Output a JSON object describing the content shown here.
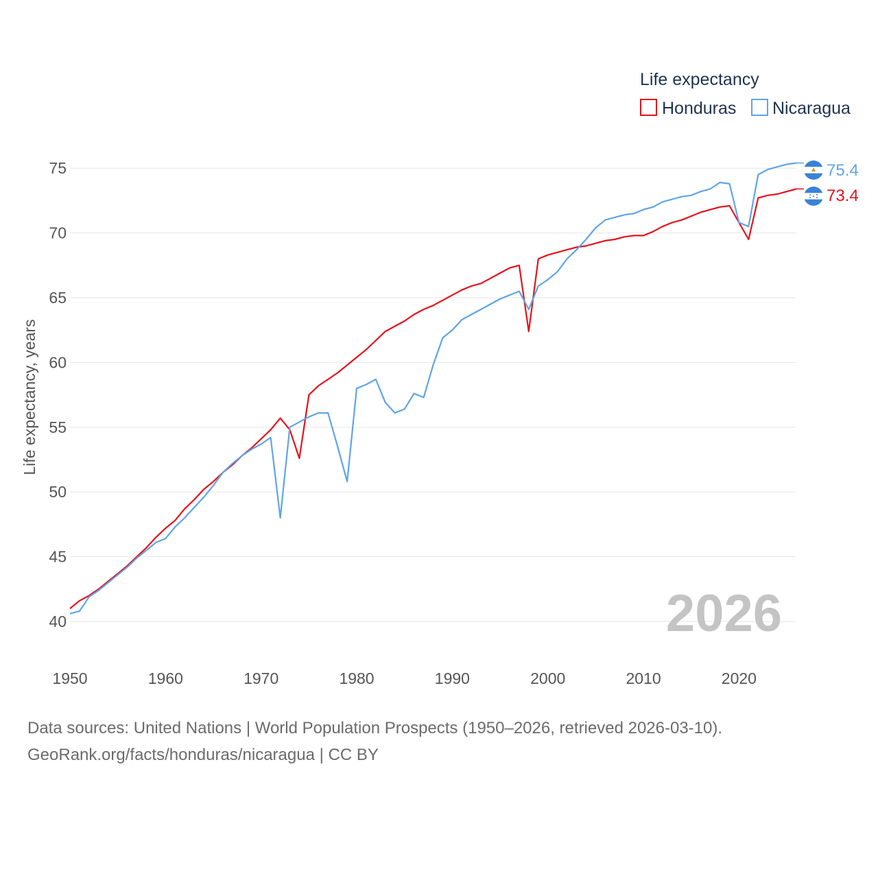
{
  "chart_data": {
    "type": "line",
    "legend_title": "Life expectancy",
    "ylabel": "Life expectancy, years",
    "xlabel": "",
    "xlim": [
      1950,
      2026
    ],
    "ylim": [
      38.2,
      77.5
    ],
    "x_ticks": [
      1950,
      1960,
      1970,
      1980,
      1990,
      2000,
      2010,
      2020
    ],
    "y_ticks": [
      40,
      45,
      50,
      55,
      60,
      65,
      70,
      75
    ],
    "year_watermark": "2026",
    "x": [
      1950,
      1951,
      1952,
      1953,
      1954,
      1955,
      1956,
      1957,
      1958,
      1959,
      1960,
      1961,
      1962,
      1963,
      1964,
      1965,
      1966,
      1967,
      1968,
      1969,
      1970,
      1971,
      1972,
      1973,
      1974,
      1975,
      1976,
      1977,
      1978,
      1979,
      1980,
      1981,
      1982,
      1983,
      1984,
      1985,
      1986,
      1987,
      1988,
      1989,
      1990,
      1991,
      1992,
      1993,
      1994,
      1995,
      1996,
      1997,
      1998,
      1999,
      2000,
      2001,
      2002,
      2003,
      2004,
      2005,
      2006,
      2007,
      2008,
      2009,
      2010,
      2011,
      2012,
      2013,
      2014,
      2015,
      2016,
      2017,
      2018,
      2019,
      2020,
      2021,
      2022,
      2023,
      2024,
      2025,
      2026
    ],
    "series": [
      {
        "name": "Honduras",
        "color": "#e8101a",
        "end_label": "73.4",
        "values": [
          41.0,
          41.6,
          42.0,
          42.5,
          43.1,
          43.7,
          44.3,
          45.0,
          45.7,
          46.5,
          47.2,
          47.8,
          48.7,
          49.4,
          50.2,
          50.8,
          51.5,
          52.1,
          52.8,
          53.4,
          54.1,
          54.8,
          55.7,
          54.8,
          52.6,
          57.5,
          58.2,
          58.7,
          59.2,
          59.8,
          60.4,
          61.0,
          61.7,
          62.4,
          62.8,
          63.2,
          63.7,
          64.1,
          64.4,
          64.8,
          65.2,
          65.6,
          65.9,
          66.1,
          66.5,
          66.9,
          67.3,
          67.5,
          62.4,
          68.0,
          68.3,
          68.5,
          68.7,
          68.9,
          69.0,
          69.2,
          69.4,
          69.5,
          69.7,
          69.8,
          69.8,
          70.1,
          70.5,
          70.8,
          71.0,
          71.3,
          71.6,
          71.8,
          72.0,
          72.1,
          70.8,
          69.5,
          72.7,
          72.9,
          73.0,
          73.2,
          73.4
        ]
      },
      {
        "name": "Nicaragua",
        "color": "#5ea4e8",
        "end_label": "75.4",
        "values": [
          40.6,
          40.8,
          41.9,
          42.4,
          43.0,
          43.6,
          44.2,
          44.9,
          45.5,
          46.1,
          46.4,
          47.3,
          48.0,
          48.8,
          49.6,
          50.5,
          51.5,
          52.2,
          52.8,
          53.3,
          53.7,
          54.2,
          48.0,
          55.0,
          55.4,
          55.8,
          56.1,
          56.1,
          53.5,
          50.8,
          58.0,
          58.3,
          58.7,
          56.9,
          56.1,
          56.4,
          57.6,
          57.3,
          59.8,
          61.9,
          62.5,
          63.3,
          63.7,
          64.1,
          64.5,
          64.9,
          65.2,
          65.5,
          64.1,
          65.9,
          66.4,
          67.0,
          68.0,
          68.7,
          69.5,
          70.4,
          71.0,
          71.2,
          71.4,
          71.5,
          71.8,
          72.0,
          72.4,
          72.6,
          72.8,
          72.9,
          73.2,
          73.4,
          73.9,
          73.8,
          70.8,
          70.5,
          74.5,
          74.9,
          75.1,
          75.3,
          75.4
        ]
      }
    ]
  },
  "footer": {
    "source_line": "Data sources: United Nations | World Population Prospects (1950–2026, retrieved 2026-03-10).",
    "url_line": "GeoRank.org/facts/honduras/nicaragua | CC BY"
  }
}
